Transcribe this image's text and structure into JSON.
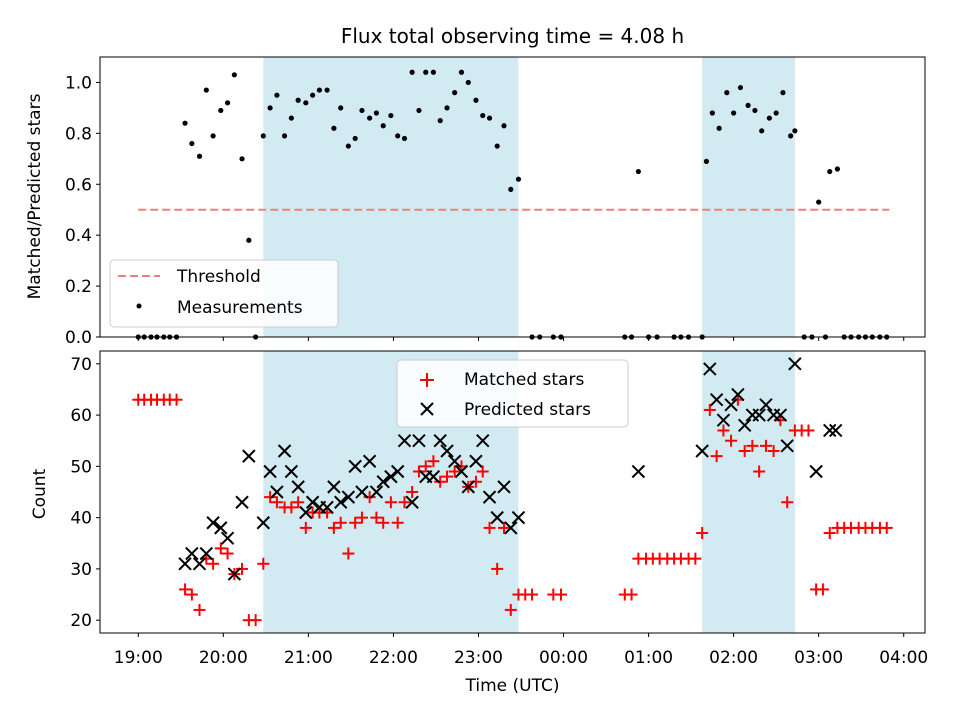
{
  "chart_data": [
    {
      "type": "scatter",
      "title": "Flux total observing time = 4.08 h",
      "ylabel": "Matched/Predicted stars",
      "xlabel": "",
      "x_unit": "hours since 19:00 UTC",
      "xlim": [
        -0.45,
        9.25
      ],
      "ylim": [
        0.0,
        1.1
      ],
      "yticks": [
        0.0,
        0.2,
        0.4,
        0.6,
        0.8,
        1.0
      ],
      "ytick_labels": [
        "0.0",
        "0.2",
        "0.4",
        "0.6",
        "0.8",
        "1.0"
      ],
      "shaded_intervals": [
        [
          1.47,
          4.47
        ],
        [
          6.63,
          7.72
        ]
      ],
      "threshold": {
        "name": "Threshold",
        "value": 0.5,
        "x_range": [
          0.0,
          8.83
        ],
        "color": "#f08080"
      },
      "legend": {
        "location": "lower-left",
        "entries": [
          "Threshold",
          "Measurements"
        ]
      },
      "series": [
        {
          "name": "Measurements",
          "color": "#000000",
          "points": [
            [
              0.0,
              0
            ],
            [
              0.07,
              0
            ],
            [
              0.15,
              0
            ],
            [
              0.22,
              0
            ],
            [
              0.3,
              0
            ],
            [
              0.37,
              0
            ],
            [
              0.45,
              0
            ],
            [
              0.55,
              0.84
            ],
            [
              0.63,
              0.76
            ],
            [
              0.72,
              0.71
            ],
            [
              0.8,
              0.97
            ],
            [
              0.88,
              0.79
            ],
            [
              0.97,
              0.89
            ],
            [
              1.05,
              0.92
            ],
            [
              1.13,
              1.03
            ],
            [
              1.22,
              0.7
            ],
            [
              1.3,
              0.38
            ],
            [
              1.38,
              0
            ],
            [
              1.47,
              0.79
            ],
            [
              1.55,
              0.9
            ],
            [
              1.63,
              0.95
            ],
            [
              1.72,
              0.79
            ],
            [
              1.8,
              0.86
            ],
            [
              1.88,
              0.93
            ],
            [
              1.97,
              0.92
            ],
            [
              2.05,
              0.95
            ],
            [
              2.13,
              0.97
            ],
            [
              2.22,
              0.97
            ],
            [
              2.3,
              0.82
            ],
            [
              2.38,
              0.9
            ],
            [
              2.47,
              0.75
            ],
            [
              2.55,
              0.78
            ],
            [
              2.63,
              0.89
            ],
            [
              2.72,
              0.86
            ],
            [
              2.8,
              0.88
            ],
            [
              2.88,
              0.83
            ],
            [
              2.97,
              0.87
            ],
            [
              3.05,
              0.79
            ],
            [
              3.13,
              0.78
            ],
            [
              3.22,
              1.04
            ],
            [
              3.3,
              0.89
            ],
            [
              3.38,
              1.04
            ],
            [
              3.47,
              1.04
            ],
            [
              3.55,
              0.85
            ],
            [
              3.63,
              0.9
            ],
            [
              3.72,
              0.96
            ],
            [
              3.8,
              1.04
            ],
            [
              3.88,
              1.0
            ],
            [
              3.97,
              0.93
            ],
            [
              4.05,
              0.87
            ],
            [
              4.13,
              0.86
            ],
            [
              4.22,
              0.75
            ],
            [
              4.3,
              0.83
            ],
            [
              4.38,
              0.58
            ],
            [
              4.47,
              0.62
            ],
            [
              4.63,
              0
            ],
            [
              4.72,
              0
            ],
            [
              4.88,
              0
            ],
            [
              4.97,
              0
            ],
            [
              5.72,
              0
            ],
            [
              5.8,
              0
            ],
            [
              5.88,
              0.65
            ],
            [
              6.0,
              0
            ],
            [
              6.1,
              0
            ],
            [
              6.3,
              0
            ],
            [
              6.38,
              0
            ],
            [
              6.47,
              0
            ],
            [
              6.63,
              0
            ],
            [
              6.68,
              0.69
            ],
            [
              6.75,
              0.88
            ],
            [
              6.83,
              0.82
            ],
            [
              6.92,
              0.96
            ],
            [
              7.0,
              0.88
            ],
            [
              7.08,
              0.98
            ],
            [
              7.17,
              0.91
            ],
            [
              7.25,
              0.89
            ],
            [
              7.33,
              0.81
            ],
            [
              7.42,
              0.86
            ],
            [
              7.5,
              0.88
            ],
            [
              7.58,
              0.96
            ],
            [
              7.67,
              0.79
            ],
            [
              7.72,
              0.81
            ],
            [
              7.83,
              0
            ],
            [
              7.92,
              0
            ],
            [
              8.0,
              0.53
            ],
            [
              8.08,
              0
            ],
            [
              8.13,
              0.65
            ],
            [
              8.22,
              0.66
            ],
            [
              8.3,
              0
            ],
            [
              8.38,
              0
            ],
            [
              8.47,
              0
            ],
            [
              8.55,
              0
            ],
            [
              8.63,
              0
            ],
            [
              8.72,
              0
            ],
            [
              8.8,
              0
            ]
          ]
        }
      ]
    },
    {
      "type": "scatter",
      "title": "",
      "ylabel": "Count",
      "xlabel": "Time (UTC)",
      "x_unit": "hours since 19:00 UTC",
      "xlim": [
        -0.45,
        9.25
      ],
      "ylim": [
        17.5,
        72.5
      ],
      "yticks": [
        20,
        30,
        40,
        50,
        60,
        70
      ],
      "ytick_labels": [
        "20",
        "30",
        "40",
        "50",
        "60",
        "70"
      ],
      "xticks": [
        0,
        1,
        2,
        3,
        4,
        5,
        6,
        7,
        8,
        9
      ],
      "xtick_labels": [
        "19:00",
        "20:00",
        "21:00",
        "22:00",
        "23:00",
        "00:00",
        "01:00",
        "02:00",
        "03:00",
        "04:00"
      ],
      "shaded_intervals": [
        [
          1.47,
          4.47
        ],
        [
          6.63,
          7.72
        ]
      ],
      "legend": {
        "location": "upper-center",
        "entries": [
          "Matched stars",
          "Predicted stars"
        ]
      },
      "series": [
        {
          "name": "Matched stars",
          "marker": "plus",
          "color": "#ff0000",
          "points": [
            [
              0.0,
              63
            ],
            [
              0.07,
              63
            ],
            [
              0.15,
              63
            ],
            [
              0.22,
              63
            ],
            [
              0.3,
              63
            ],
            [
              0.37,
              63
            ],
            [
              0.45,
              63
            ],
            [
              0.55,
              26
            ],
            [
              0.63,
              25
            ],
            [
              0.72,
              22
            ],
            [
              0.8,
              32
            ],
            [
              0.88,
              31
            ],
            [
              0.97,
              34
            ],
            [
              1.05,
              33
            ],
            [
              1.13,
              29
            ],
            [
              1.22,
              30
            ],
            [
              1.3,
              20
            ],
            [
              1.38,
              20
            ],
            [
              1.47,
              31
            ],
            [
              1.55,
              44
            ],
            [
              1.63,
              43
            ],
            [
              1.72,
              42
            ],
            [
              1.8,
              42
            ],
            [
              1.88,
              43
            ],
            [
              1.97,
              38
            ],
            [
              2.05,
              41
            ],
            [
              2.13,
              41
            ],
            [
              2.22,
              41
            ],
            [
              2.3,
              38
            ],
            [
              2.38,
              39
            ],
            [
              2.47,
              33
            ],
            [
              2.55,
              39
            ],
            [
              2.63,
              40
            ],
            [
              2.72,
              44
            ],
            [
              2.8,
              40
            ],
            [
              2.88,
              39
            ],
            [
              2.97,
              43
            ],
            [
              3.05,
              39
            ],
            [
              3.13,
              43
            ],
            [
              3.22,
              45
            ],
            [
              3.3,
              49
            ],
            [
              3.38,
              50
            ],
            [
              3.47,
              51
            ],
            [
              3.55,
              47
            ],
            [
              3.63,
              48
            ],
            [
              3.72,
              49
            ],
            [
              3.8,
              50
            ],
            [
              3.88,
              46
            ],
            [
              3.97,
              47
            ],
            [
              4.05,
              49
            ],
            [
              4.13,
              38
            ],
            [
              4.22,
              30
            ],
            [
              4.3,
              38
            ],
            [
              4.38,
              22
            ],
            [
              4.47,
              25
            ],
            [
              4.55,
              25
            ],
            [
              4.63,
              25
            ],
            [
              4.88,
              25
            ],
            [
              4.97,
              25
            ],
            [
              5.72,
              25
            ],
            [
              5.8,
              25
            ],
            [
              5.88,
              32
            ],
            [
              5.97,
              32
            ],
            [
              6.05,
              32
            ],
            [
              6.13,
              32
            ],
            [
              6.22,
              32
            ],
            [
              6.3,
              32
            ],
            [
              6.38,
              32
            ],
            [
              6.47,
              32
            ],
            [
              6.55,
              32
            ],
            [
              6.63,
              37
            ],
            [
              6.72,
              61
            ],
            [
              6.8,
              52
            ],
            [
              6.88,
              57
            ],
            [
              6.97,
              55
            ],
            [
              7.05,
              63
            ],
            [
              7.13,
              53
            ],
            [
              7.22,
              54
            ],
            [
              7.3,
              49
            ],
            [
              7.38,
              54
            ],
            [
              7.47,
              53
            ],
            [
              7.55,
              59
            ],
            [
              7.63,
              43
            ],
            [
              7.72,
              57
            ],
            [
              7.8,
              57
            ],
            [
              7.88,
              57
            ],
            [
              7.97,
              26
            ],
            [
              8.05,
              26
            ],
            [
              8.13,
              37
            ],
            [
              8.22,
              38
            ],
            [
              8.3,
              38
            ],
            [
              8.38,
              38
            ],
            [
              8.47,
              38
            ],
            [
              8.55,
              38
            ],
            [
              8.63,
              38
            ],
            [
              8.72,
              38
            ],
            [
              8.8,
              38
            ]
          ]
        },
        {
          "name": "Predicted stars",
          "marker": "x",
          "color": "#000000",
          "points": [
            [
              0.55,
              31
            ],
            [
              0.63,
              33
            ],
            [
              0.72,
              31
            ],
            [
              0.8,
              33
            ],
            [
              0.88,
              39
            ],
            [
              0.97,
              38
            ],
            [
              1.05,
              36
            ],
            [
              1.13,
              29
            ],
            [
              1.22,
              43
            ],
            [
              1.3,
              52
            ],
            [
              1.47,
              39
            ],
            [
              1.55,
              49
            ],
            [
              1.63,
              45
            ],
            [
              1.72,
              53
            ],
            [
              1.8,
              49
            ],
            [
              1.88,
              46
            ],
            [
              1.97,
              41
            ],
            [
              2.05,
              43
            ],
            [
              2.13,
              42
            ],
            [
              2.22,
              42
            ],
            [
              2.3,
              46
            ],
            [
              2.38,
              43
            ],
            [
              2.47,
              44
            ],
            [
              2.55,
              50
            ],
            [
              2.63,
              45
            ],
            [
              2.72,
              51
            ],
            [
              2.8,
              45
            ],
            [
              2.88,
              47
            ],
            [
              2.97,
              48
            ],
            [
              3.05,
              49
            ],
            [
              3.13,
              55
            ],
            [
              3.22,
              43
            ],
            [
              3.3,
              55
            ],
            [
              3.38,
              48
            ],
            [
              3.47,
              48
            ],
            [
              3.55,
              55
            ],
            [
              3.63,
              53
            ],
            [
              3.72,
              51
            ],
            [
              3.8,
              49
            ],
            [
              3.88,
              46
            ],
            [
              3.97,
              51
            ],
            [
              4.05,
              55
            ],
            [
              4.13,
              44
            ],
            [
              4.22,
              40
            ],
            [
              4.3,
              46
            ],
            [
              4.38,
              38
            ],
            [
              4.47,
              40
            ],
            [
              5.88,
              49
            ],
            [
              6.63,
              53
            ],
            [
              6.72,
              69
            ],
            [
              6.8,
              63
            ],
            [
              6.88,
              59
            ],
            [
              6.97,
              62
            ],
            [
              7.05,
              64
            ],
            [
              7.13,
              58
            ],
            [
              7.22,
              60
            ],
            [
              7.3,
              60
            ],
            [
              7.38,
              62
            ],
            [
              7.47,
              60
            ],
            [
              7.55,
              60
            ],
            [
              7.63,
              54
            ],
            [
              7.72,
              70
            ],
            [
              7.97,
              49
            ],
            [
              8.13,
              57
            ],
            [
              8.2,
              57
            ]
          ]
        }
      ]
    }
  ]
}
